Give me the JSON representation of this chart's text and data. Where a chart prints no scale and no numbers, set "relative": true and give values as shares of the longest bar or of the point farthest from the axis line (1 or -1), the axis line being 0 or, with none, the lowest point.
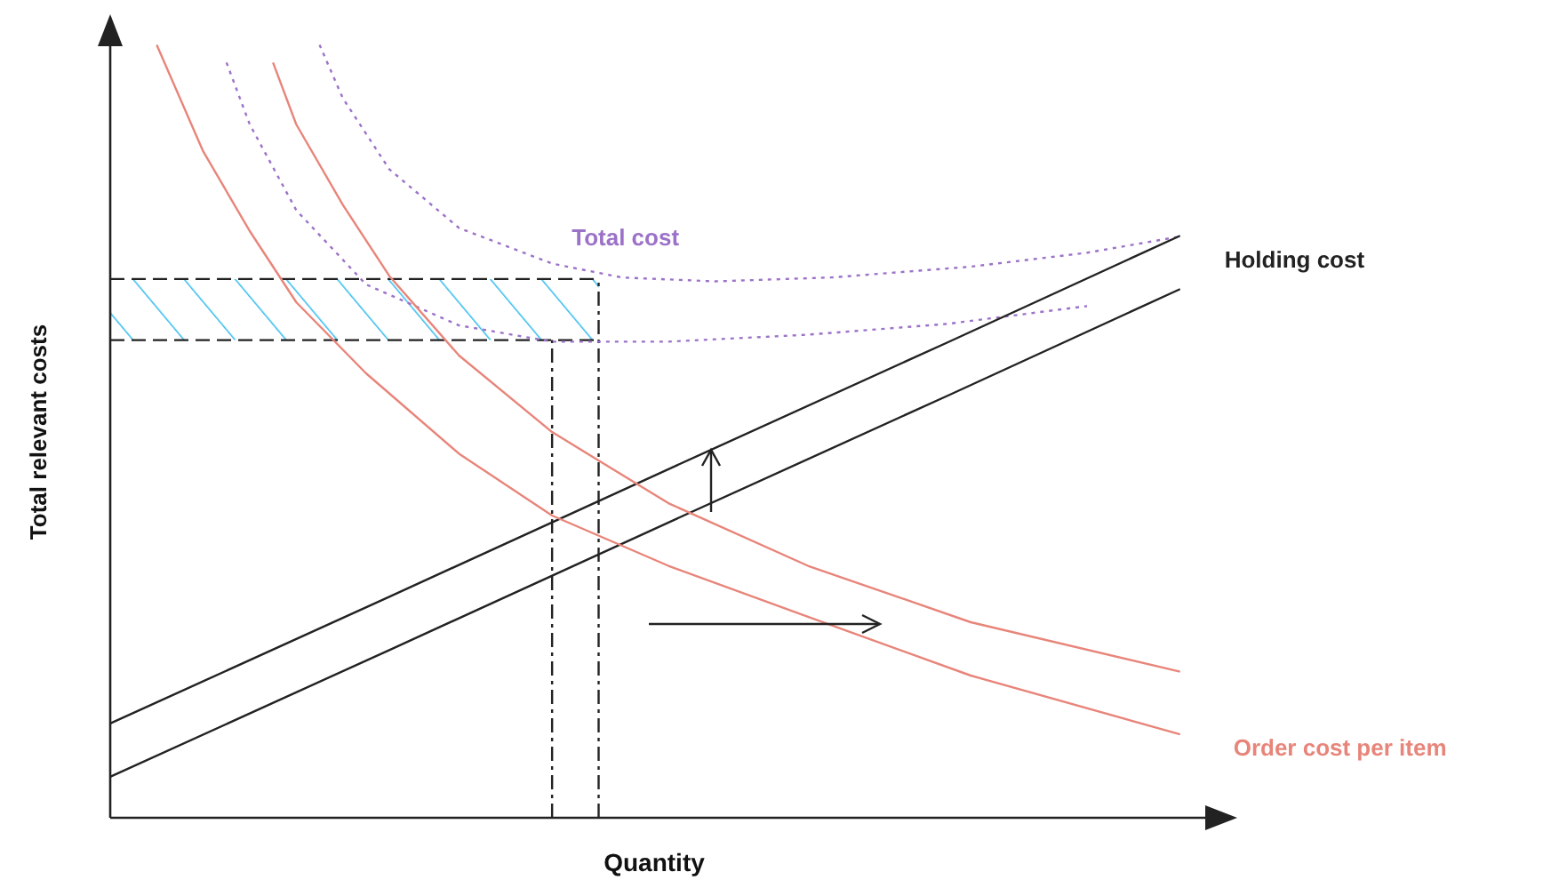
{
  "chart_data": {
    "type": "line",
    "xlabel": "Quantity",
    "ylabel": "Total relevant costs",
    "relative": true,
    "marker": "none",
    "categories": [
      null,
      null,
      null,
      null,
      null,
      null,
      null,
      null,
      null,
      null,
      null,
      null,
      null,
      null,
      null,
      null,
      null,
      null,
      null,
      null,
      null,
      null,
      null,
      null,
      null,
      null,
      null,
      null,
      null,
      null,
      null,
      null,
      null,
      null,
      null,
      null,
      null,
      null,
      null,
      null,
      null,
      null,
      null,
      null,
      null,
      null,
      null,
      null,
      null
    ],
    "ref_lines": [
      {
        "axis": "y",
        "value": 0.697,
        "color": "#222222",
        "line_style": "dashed"
      },
      {
        "axis": "y",
        "value": 0.618,
        "color": "#222222",
        "line_style": "dashed"
      }
    ],
    "bands": [
      {
        "axis": "y",
        "from": 0.618,
        "to": 0.697,
        "color": "#33bbee"
      }
    ],
    "series": [
      {
        "name": "Total cost",
        "color": "#9b72c8",
        "line_style": "dotted",
        "values": [
          null,
          null,
          null,
          null,
          null,
          null,
          null,
          null,
          null,
          1.0,
          0.931,
          null,
          0.839,
          null,
          null,
          0.763,
          null,
          null,
          null,
          0.717,
          null,
          null,
          0.699,
          null,
          null,
          null,
          0.694,
          null,
          null,
          null,
          null,
          0.699,
          null,
          null,
          null,
          null,
          null,
          0.713,
          null,
          null,
          null,
          null,
          0.731,
          null,
          null,
          null,
          0.752,
          null,
          null
        ]
      },
      {
        "color": "#9b72c8",
        "line_style": "dotted",
        "values": [
          null,
          null,
          null,
          null,
          null,
          0.977,
          0.897,
          null,
          0.786,
          null,
          null,
          0.69,
          null,
          null,
          null,
          0.637,
          null,
          null,
          null,
          0.616,
          null,
          null,
          null,
          null,
          0.616,
          null,
          null,
          null,
          null,
          null,
          0.625,
          null,
          null,
          null,
          null,
          null,
          0.639,
          null,
          null,
          null,
          null,
          null,
          0.662,
          null,
          null,
          null,
          null,
          null,
          null
        ]
      },
      {
        "name": "Holding cost",
        "color": "#222222",
        "line_style": "solid",
        "values": [
          0.122,
          null,
          null,
          null,
          null,
          null,
          null,
          null,
          null,
          null,
          null,
          null,
          0.286,
          null,
          null,
          null,
          null,
          null,
          null,
          null,
          null,
          null,
          null,
          null,
          0.451,
          null,
          null,
          null,
          null,
          null,
          null,
          null,
          null,
          null,
          null,
          null,
          0.615,
          null,
          null,
          null,
          null,
          null,
          null,
          null,
          null,
          null,
          0.753,
          null,
          null
        ]
      },
      {
        "color": "#222222",
        "line_style": "solid",
        "values": [
          0.053,
          null,
          null,
          null,
          null,
          null,
          null,
          null,
          null,
          null,
          null,
          null,
          0.217,
          null,
          null,
          null,
          null,
          null,
          null,
          null,
          null,
          null,
          null,
          null,
          0.382,
          null,
          null,
          null,
          null,
          null,
          null,
          null,
          null,
          null,
          null,
          null,
          0.546,
          null,
          null,
          null,
          null,
          null,
          null,
          null,
          null,
          null,
          0.684,
          null,
          null
        ]
      },
      {
        "color": "#e8857a",
        "line_style": "solid",
        "values": [
          null,
          null,
          null,
          null,
          null,
          null,
          null,
          0.977,
          0.897,
          null,
          0.793,
          null,
          0.701,
          null,
          null,
          0.598,
          null,
          null,
          null,
          0.499,
          null,
          null,
          null,
          null,
          0.407,
          null,
          null,
          null,
          null,
          null,
          0.326,
          null,
          null,
          null,
          null,
          null,
          null,
          0.253,
          null,
          null,
          null,
          null,
          null,
          null,
          null,
          null,
          0.189,
          null,
          null
        ]
      },
      {
        "name": "Order cost per item",
        "color": "#e8857a",
        "line_style": "solid",
        "values": [
          null,
          null,
          1.0,
          0.931,
          0.862,
          null,
          0.759,
          null,
          0.667,
          null,
          null,
          0.575,
          null,
          null,
          null,
          0.471,
          null,
          null,
          null,
          0.391,
          null,
          null,
          null,
          null,
          0.326,
          null,
          null,
          null,
          null,
          null,
          0.26,
          null,
          null,
          null,
          null,
          null,
          null,
          0.184,
          null,
          null,
          null,
          null,
          null,
          null,
          null,
          null,
          0.108,
          null,
          null
        ]
      }
    ]
  }
}
